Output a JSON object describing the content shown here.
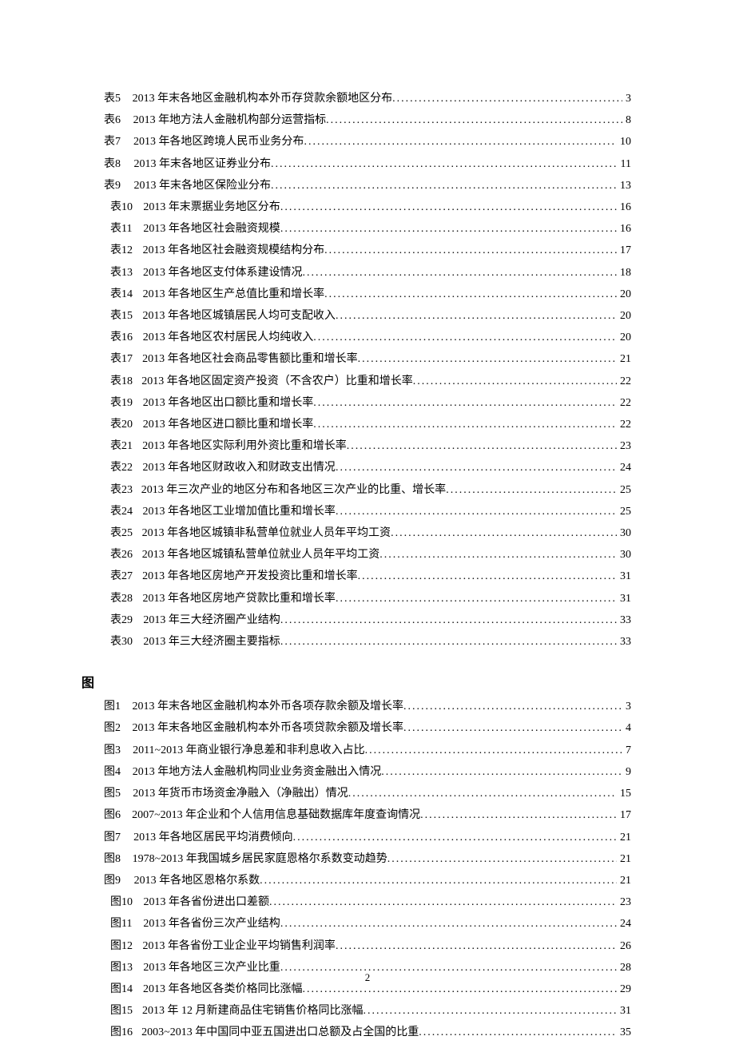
{
  "tables_prefix": "表",
  "figures_prefix": "图",
  "figures_heading": "图",
  "page_number": "2",
  "tables": [
    {
      "num": "5",
      "title": "2013 年末各地区金融机构本外币存贷款余额地区分布",
      "page": "3"
    },
    {
      "num": "6",
      "title": "2013 年地方法人金融机构部分运营指标",
      "page": "8"
    },
    {
      "num": "7",
      "title": "2013 年各地区跨境人民币业务分布",
      "page": "10"
    },
    {
      "num": "8",
      "title": "2013 年末各地区证券业分布",
      "page": "11"
    },
    {
      "num": "9",
      "title": "2013 年末各地区保险业分布",
      "page": "13"
    },
    {
      "num": "10",
      "title": "2013 年末票据业务地区分布",
      "page": "16"
    },
    {
      "num": "11",
      "title": "2013 年各地区社会融资规模",
      "page": "16"
    },
    {
      "num": "12",
      "title": "2013 年各地区社会融资规模结构分布",
      "page": "17"
    },
    {
      "num": "13",
      "title": "2013 年各地区支付体系建设情况",
      "page": "18"
    },
    {
      "num": "14",
      "title": "2013 年各地区生产总值比重和增长率",
      "page": "20"
    },
    {
      "num": "15",
      "title": "2013 年各地区城镇居民人均可支配收入",
      "page": "20"
    },
    {
      "num": "16",
      "title": "2013 年各地区农村居民人均纯收入",
      "page": "20"
    },
    {
      "num": "17",
      "title": "2013 年各地区社会商品零售额比重和增长率",
      "page": "21"
    },
    {
      "num": "18",
      "title": "2013 年各地区固定资产投资（不含农户）比重和增长率",
      "page": "22"
    },
    {
      "num": "19",
      "title": "2013 年各地区出口额比重和增长率",
      "page": "22"
    },
    {
      "num": "20",
      "title": "2013 年各地区进口额比重和增长率",
      "page": "22"
    },
    {
      "num": "21",
      "title": "2013 年各地区实际利用外资比重和增长率",
      "page": "23"
    },
    {
      "num": "22",
      "title": "2013 年各地区财政收入和财政支出情况",
      "page": "24"
    },
    {
      "num": "23",
      "title": "2013 年三次产业的地区分布和各地区三次产业的比重、增长率",
      "page": "25"
    },
    {
      "num": "24",
      "title": "2013 年各地区工业增加值比重和增长率",
      "page": "25"
    },
    {
      "num": "25",
      "title": "2013 年各地区城镇非私营单位就业人员年平均工资",
      "page": "30"
    },
    {
      "num": "26",
      "title": "2013 年各地区城镇私营单位就业人员年平均工资",
      "page": "30"
    },
    {
      "num": "27",
      "title": "2013 年各地区房地产开发投资比重和增长率",
      "page": "31"
    },
    {
      "num": "28",
      "title": "2013 年各地区房地产贷款比重和增长率",
      "page": "31"
    },
    {
      "num": "29",
      "title": "2013 年三大经济圈产业结构",
      "page": "33"
    },
    {
      "num": "30",
      "title": "2013 年三大经济圈主要指标",
      "page": "33"
    }
  ],
  "figures": [
    {
      "num": "1",
      "title": "2013 年末各地区金融机构本外币各项存款余额及增长率",
      "page": "3"
    },
    {
      "num": "2",
      "title": "2013 年末各地区金融机构本外币各项贷款余额及增长率",
      "page": "4"
    },
    {
      "num": "3",
      "title": "2011~2013 年商业银行净息差和非利息收入占比",
      "page": "7"
    },
    {
      "num": "4",
      "title": "2013 年地方法人金融机构同业业务资金融出入情况",
      "page": "9"
    },
    {
      "num": "5",
      "title": "2013 年货币市场资金净融入（净融出）情况",
      "page": "15"
    },
    {
      "num": "6",
      "title": "2007~2013 年企业和个人信用信息基础数据库年度查询情况",
      "page": "17"
    },
    {
      "num": "7",
      "title": "2013 年各地区居民平均消费倾向",
      "page": "21"
    },
    {
      "num": "8",
      "title": "1978~2013 年我国城乡居民家庭恩格尔系数变动趋势",
      "page": "21"
    },
    {
      "num": "9",
      "title": "2013 年各地区恩格尔系数",
      "page": "21"
    },
    {
      "num": "10",
      "title": "2013 年各省份进出口差额",
      "page": "23"
    },
    {
      "num": "11",
      "title": "2013 年各省份三次产业结构",
      "page": "24"
    },
    {
      "num": "12",
      "title": "2013 年各省份工业企业平均销售利润率",
      "page": "26"
    },
    {
      "num": "13",
      "title": "2013 年各地区三次产业比重",
      "page": "28"
    },
    {
      "num": "14",
      "title": "2013 年各地区各类价格同比涨幅",
      "page": "29"
    },
    {
      "num": "15",
      "title": "2013 年 12 月新建商品住宅销售价格同比涨幅",
      "page": "31"
    },
    {
      "num": "16",
      "title": "2003~2013 年中国同中亚五国进出口总额及占全国的比重",
      "page": "35"
    }
  ]
}
